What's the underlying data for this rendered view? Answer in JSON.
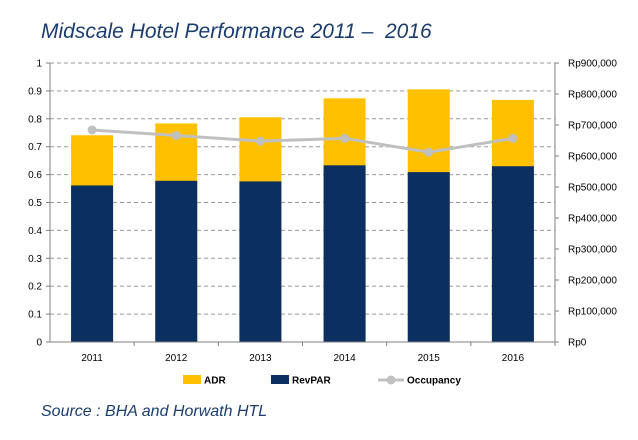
{
  "title": "Midscale Hotel Performance 2011 –  2016",
  "source": "Source : BHA and Horwath HTL",
  "colors": {
    "adr": "#ffc000",
    "revpar": "#0c2f62",
    "occupancy": "#c0c0c0",
    "grid": "#9a9a9a",
    "title": "#1b3d6e"
  },
  "chart_data": {
    "type": "bar",
    "stacked": true,
    "categories": [
      "2011",
      "2012",
      "2013",
      "2014",
      "2015",
      "2016"
    ],
    "series": [
      {
        "name": "ADR",
        "type": "bar",
        "axis": "right",
        "values": [
          667000,
          705000,
          725000,
          786000,
          815000,
          781000
        ]
      },
      {
        "name": "RevPAR",
        "type": "bar",
        "axis": "right",
        "values": [
          505000,
          520000,
          518000,
          570000,
          548000,
          567000
        ]
      },
      {
        "name": "Occupancy",
        "type": "line",
        "axis": "left",
        "values": [
          0.76,
          0.74,
          0.72,
          0.73,
          0.68,
          0.73
        ]
      }
    ],
    "bar_note": "RevPAR bar in front of the full ADR bar",
    "y_left": {
      "min": 0,
      "max": 1,
      "ticks": [
        "0",
        "0.1",
        "0.2",
        "0.3",
        "0.4",
        "0.5",
        "0.6",
        "0.7",
        "0.8",
        "0.9",
        "1"
      ]
    },
    "y_right": {
      "min": 0,
      "max": 900000,
      "ticks": [
        "Rp0",
        "Rp100,000",
        "Rp200,000",
        "Rp300,000",
        "Rp400,000",
        "Rp500,000",
        "Rp600,000",
        "Rp700,000",
        "Rp800,000",
        "Rp900,000"
      ]
    },
    "grid": true,
    "legend": {
      "position": "bottom",
      "entries": [
        "ADR",
        "RevPAR",
        "Occupancy"
      ]
    }
  }
}
